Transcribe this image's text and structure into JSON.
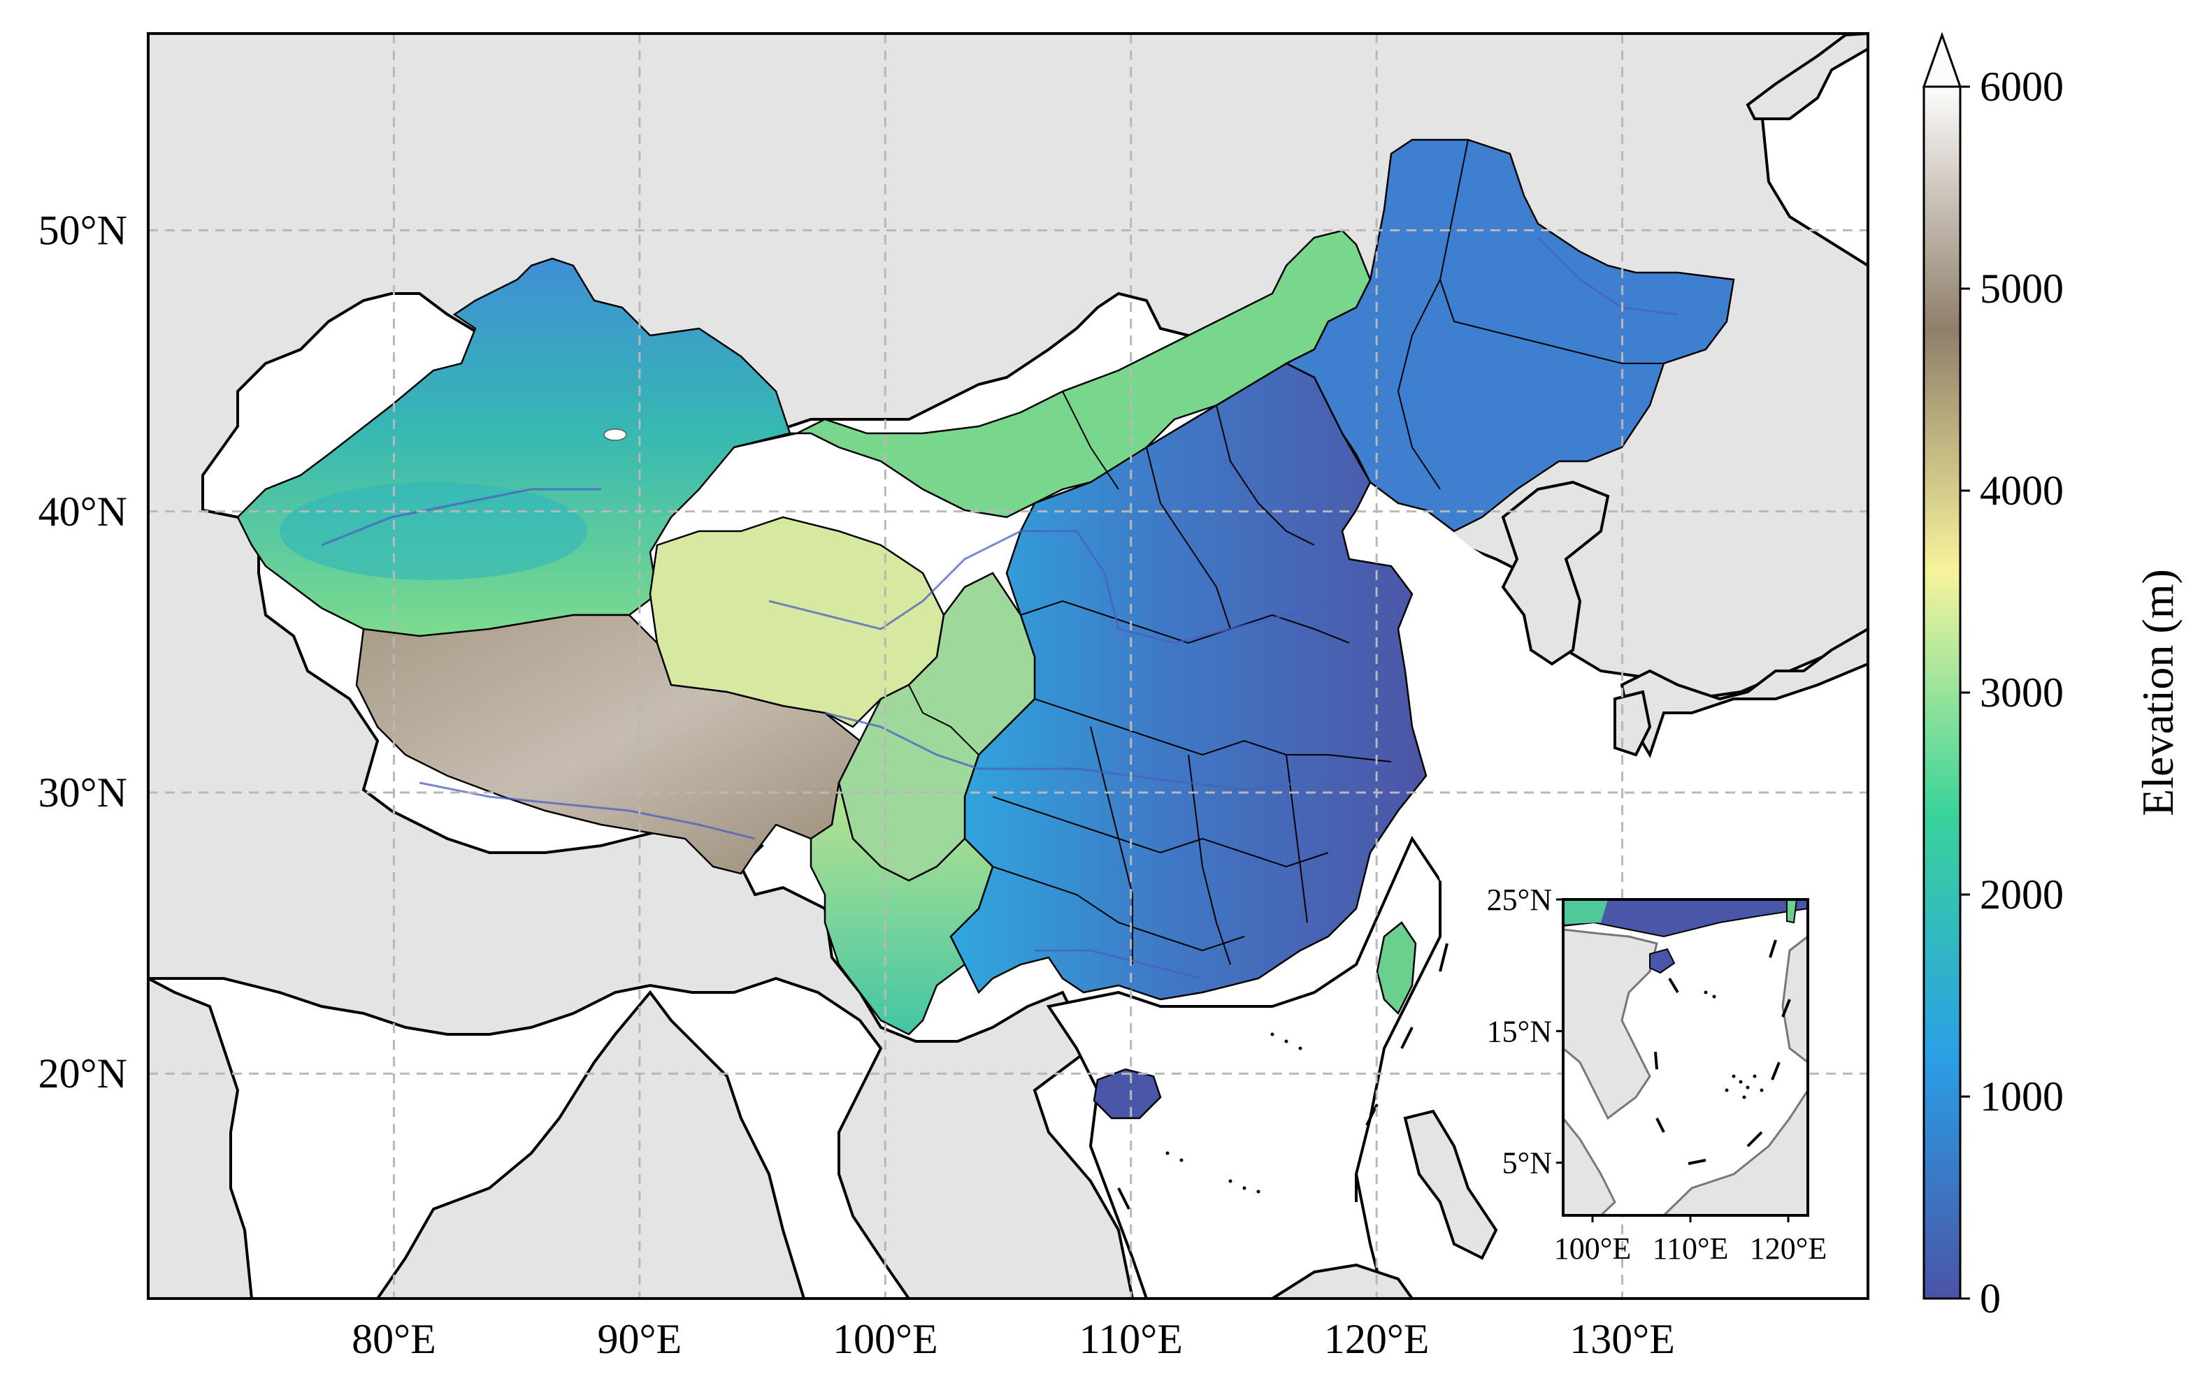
{
  "map": {
    "type": "elevation-map",
    "region": "China",
    "extent": {
      "lon": [
        70,
        140
      ],
      "lat": [
        12,
        57
      ]
    },
    "gridlines": true,
    "lon_ticks": [
      {
        "value": 80,
        "label": "80°E"
      },
      {
        "value": 90,
        "label": "90°E"
      },
      {
        "value": 100,
        "label": "100°E"
      },
      {
        "value": 110,
        "label": "110°E"
      },
      {
        "value": 120,
        "label": "120°E"
      },
      {
        "value": 130,
        "label": "130°E"
      }
    ],
    "lat_ticks": [
      {
        "value": 20,
        "label": "20°N"
      },
      {
        "value": 30,
        "label": "30°N"
      },
      {
        "value": 40,
        "label": "40°N"
      },
      {
        "value": 50,
        "label": "50°N"
      }
    ],
    "colors": {
      "land_background": "#e4e4e4",
      "ocean": "#ffffff",
      "gridline": "#b8b8b8",
      "boundary": "#000000",
      "river": "#4a5fc0"
    }
  },
  "inset": {
    "extent": {
      "lon": [
        97,
        122
      ],
      "lat": [
        1,
        25
      ]
    },
    "lon_ticks": [
      {
        "value": 100,
        "label": "100°E"
      },
      {
        "value": 110,
        "label": "110°E"
      },
      {
        "value": 120,
        "label": "120°E"
      }
    ],
    "lat_ticks": [
      {
        "value": 5,
        "label": "5°N"
      },
      {
        "value": 15,
        "label": "15°N"
      },
      {
        "value": 25,
        "label": "25°N"
      }
    ]
  },
  "colorbar": {
    "label": "Elevation (m)",
    "range": [
      0,
      6000
    ],
    "extend": "max",
    "ticks": [
      {
        "value": 0,
        "label": "0"
      },
      {
        "value": 1000,
        "label": "1000"
      },
      {
        "value": 2000,
        "label": "2000"
      },
      {
        "value": 3000,
        "label": "3000"
      },
      {
        "value": 4000,
        "label": "4000"
      },
      {
        "value": 5000,
        "label": "5000"
      },
      {
        "value": 6000,
        "label": "6000"
      }
    ],
    "colormap": [
      "#4b53a5",
      "#2a9fe6",
      "#3ad39a",
      "#f6f39c",
      "#8f7f6a",
      "#fdfcfc"
    ]
  }
}
